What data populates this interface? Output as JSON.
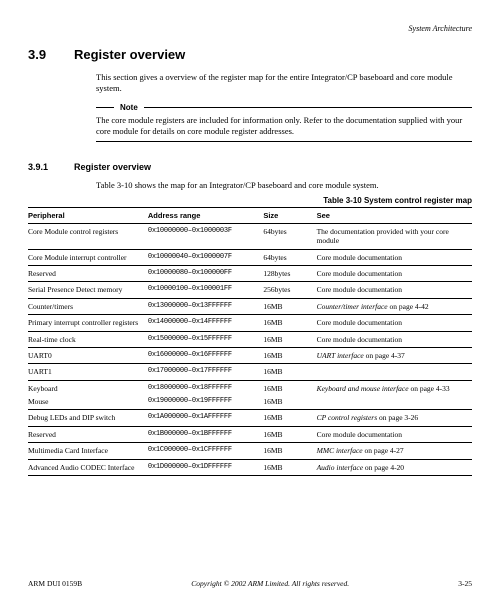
{
  "header": {
    "chapter": "System Architecture"
  },
  "section": {
    "number": "3.9",
    "title": "Register overview",
    "intro": "This section gives a overview of the register map for the entire Integrator/CP baseboard and core module system."
  },
  "note": {
    "label": "Note",
    "text": "The core module registers are included for information only. Refer to the documentation supplied with your core module for details on core module register addresses."
  },
  "subsection": {
    "number": "3.9.1",
    "title": "Register overview",
    "intro": "Table 3-10 shows the map for an Integrator/CP baseboard and core module system."
  },
  "table": {
    "caption": "Table 3-10 System control register map",
    "headers": {
      "c0": "Peripheral",
      "c1": "Address range",
      "c2": "Size",
      "c3": "See"
    },
    "rows": [
      {
        "periph": "Core Module control registers",
        "addr": "0x10000000–0x1000003F",
        "size": "64bytes",
        "see_plain": "The documentation provided with your core module"
      },
      {
        "periph": "Core Module interrupt controller",
        "addr": "0x10000040–0x1000007F",
        "size": "64bytes",
        "see_plain": "Core module documentation"
      },
      {
        "periph": "Reserved",
        "addr": "0x10000080–0x100000FF",
        "size": "128bytes",
        "see_plain": "Core module documentation"
      },
      {
        "periph": "Serial Presence Detect memory",
        "addr": "0x10000100–0x100001FF",
        "size": "256bytes",
        "see_plain": "Core module documentation"
      },
      {
        "periph": "Counter/timers",
        "addr": "0x13000000–0x13FFFFFF",
        "size": "16MB",
        "see_italic": "Counter/timer interface",
        "see_suffix": " on page 4-42"
      },
      {
        "periph": "Primary interrupt controller registers",
        "addr": "0x14000000–0x14FFFFFF",
        "size": "16MB",
        "see_plain": "Core module documentation"
      },
      {
        "periph": "Real-time clock",
        "addr": "0x15000000–0x15FFFFFF",
        "size": "16MB",
        "see_plain": "Core module documentation"
      },
      {
        "periph": "UART0",
        "addr": "0x16000000–0x16FFFFFF",
        "size": "16MB",
        "see_italic": "UART interface",
        "see_suffix": " on page 4-37"
      },
      {
        "periph": "UART1",
        "addr": "0x17000000–0x17FFFFFF",
        "size": "16MB",
        "see_plain": ""
      },
      {
        "periph": "Keyboard",
        "addr": "0x18000000–0x18FFFFFF",
        "size": "16MB",
        "see_italic": "Keyboard and mouse interface",
        "see_suffix": " on page 4-33",
        "group_start": true
      },
      {
        "periph": "Mouse",
        "addr": "0x19000000–0x19FFFFFF",
        "size": "16MB",
        "see_plain": "",
        "group_end": true
      },
      {
        "periph": "Debug LEDs and DIP switch",
        "addr": "0x1A000000–0x1AFFFFFF",
        "size": "16MB",
        "see_italic": "CP control registers",
        "see_suffix": " on page 3-26"
      },
      {
        "periph": "Reserved",
        "addr": "0x1B000000–0x1BFFFFFF",
        "size": "16MB",
        "see_plain": "Core module documentation"
      },
      {
        "periph": "Multimedia Card Interface",
        "addr": "0x1C000000–0x1CFFFFFF",
        "size": "16MB",
        "see_italic": "MMC interface",
        "see_suffix": " on page 4-27"
      },
      {
        "periph": "Advanced Audio CODEC Interface",
        "addr": "0x1D000000–0x1DFFFFFF",
        "size": "16MB",
        "see_italic": "Audio interface",
        "see_suffix": " on page 4-20"
      }
    ]
  },
  "footer": {
    "left": "ARM DUI 0159B",
    "center": "Copyright © 2002 ARM Limited. All rights reserved.",
    "right": "3-25"
  }
}
